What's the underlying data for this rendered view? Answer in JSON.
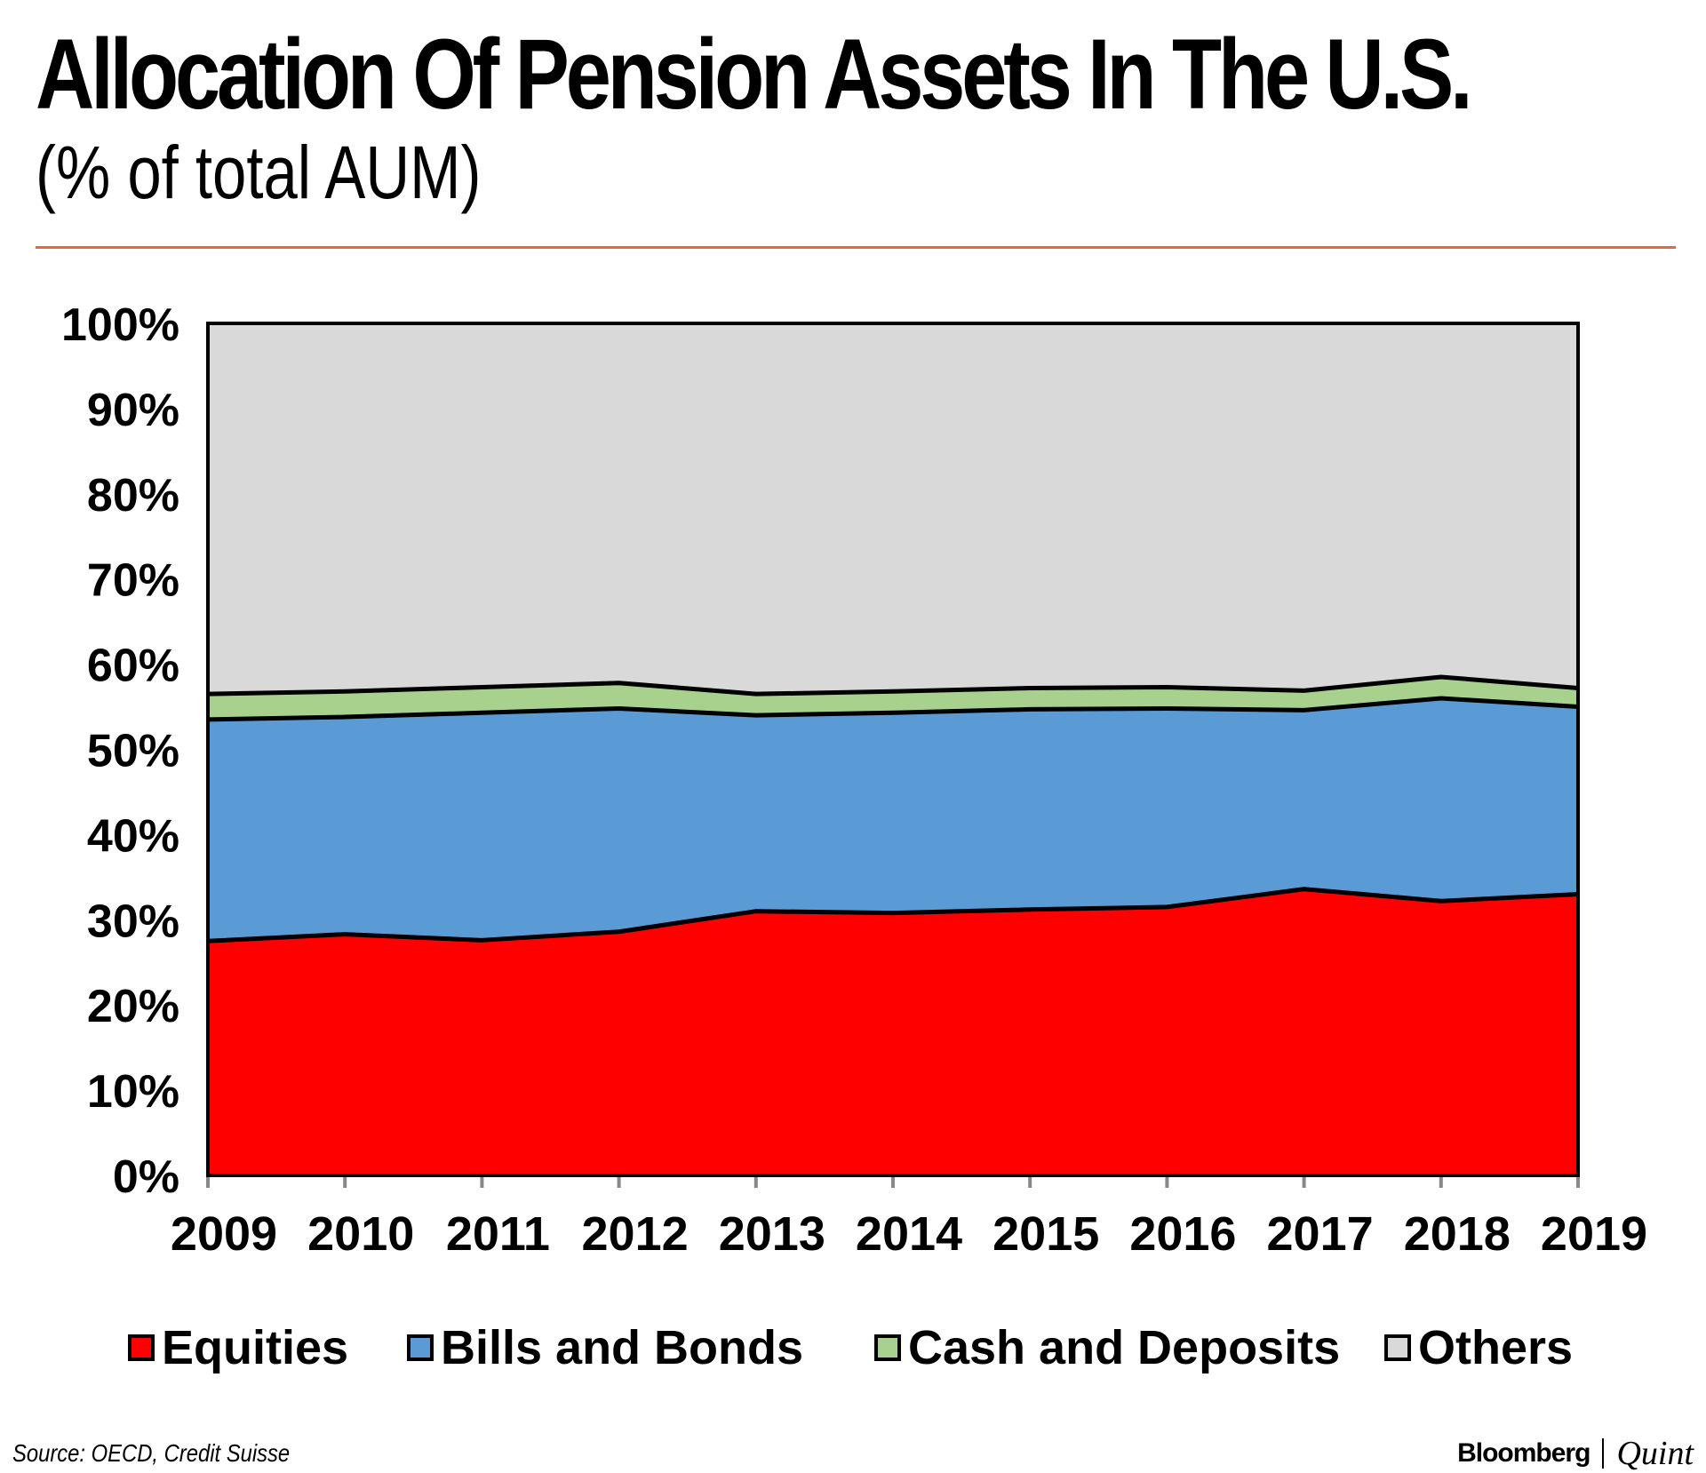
{
  "header": {
    "title": "Allocation Of Pension Assets In The U.S.",
    "subtitle": "(% of total AUM)"
  },
  "chart_data": {
    "type": "area",
    "stacked": true,
    "categories": [
      "2009",
      "2010",
      "2011",
      "2012",
      "2013",
      "2014",
      "2015",
      "2016",
      "2017",
      "2018",
      "2019"
    ],
    "series": [
      {
        "name": "Equities",
        "color": "#ff0000",
        "values": [
          27.5,
          28.3,
          27.6,
          28.6,
          31.0,
          30.8,
          31.2,
          31.5,
          33.6,
          32.2,
          33.0
        ]
      },
      {
        "name": "Bills and Bonds",
        "color": "#5b9bd5",
        "values": [
          26.0,
          25.5,
          26.7,
          26.2,
          23.0,
          23.5,
          23.5,
          23.3,
          21.0,
          23.8,
          22.0
        ]
      },
      {
        "name": "Cash and Deposits",
        "color": "#a9d18e",
        "values": [
          3.0,
          3.0,
          3.0,
          3.0,
          2.5,
          2.5,
          2.5,
          2.5,
          2.3,
          2.5,
          2.2
        ]
      },
      {
        "name": "Others",
        "color": "#d9d9d9",
        "values": [
          43.5,
          43.2,
          42.7,
          42.2,
          43.5,
          43.2,
          42.8,
          42.7,
          43.1,
          41.5,
          42.8
        ]
      }
    ],
    "y_ticks": [
      "0%",
      "10%",
      "20%",
      "30%",
      "40%",
      "50%",
      "60%",
      "70%",
      "80%",
      "90%",
      "100%"
    ],
    "ylim": [
      0,
      100
    ],
    "legend_position": "bottom",
    "grid": false
  },
  "footer": {
    "source": "Source: OECD, Credit Suisse",
    "brand_left": "Bloomberg",
    "brand_right": "Quint"
  },
  "colors": {
    "rule": "#e46a2e"
  }
}
